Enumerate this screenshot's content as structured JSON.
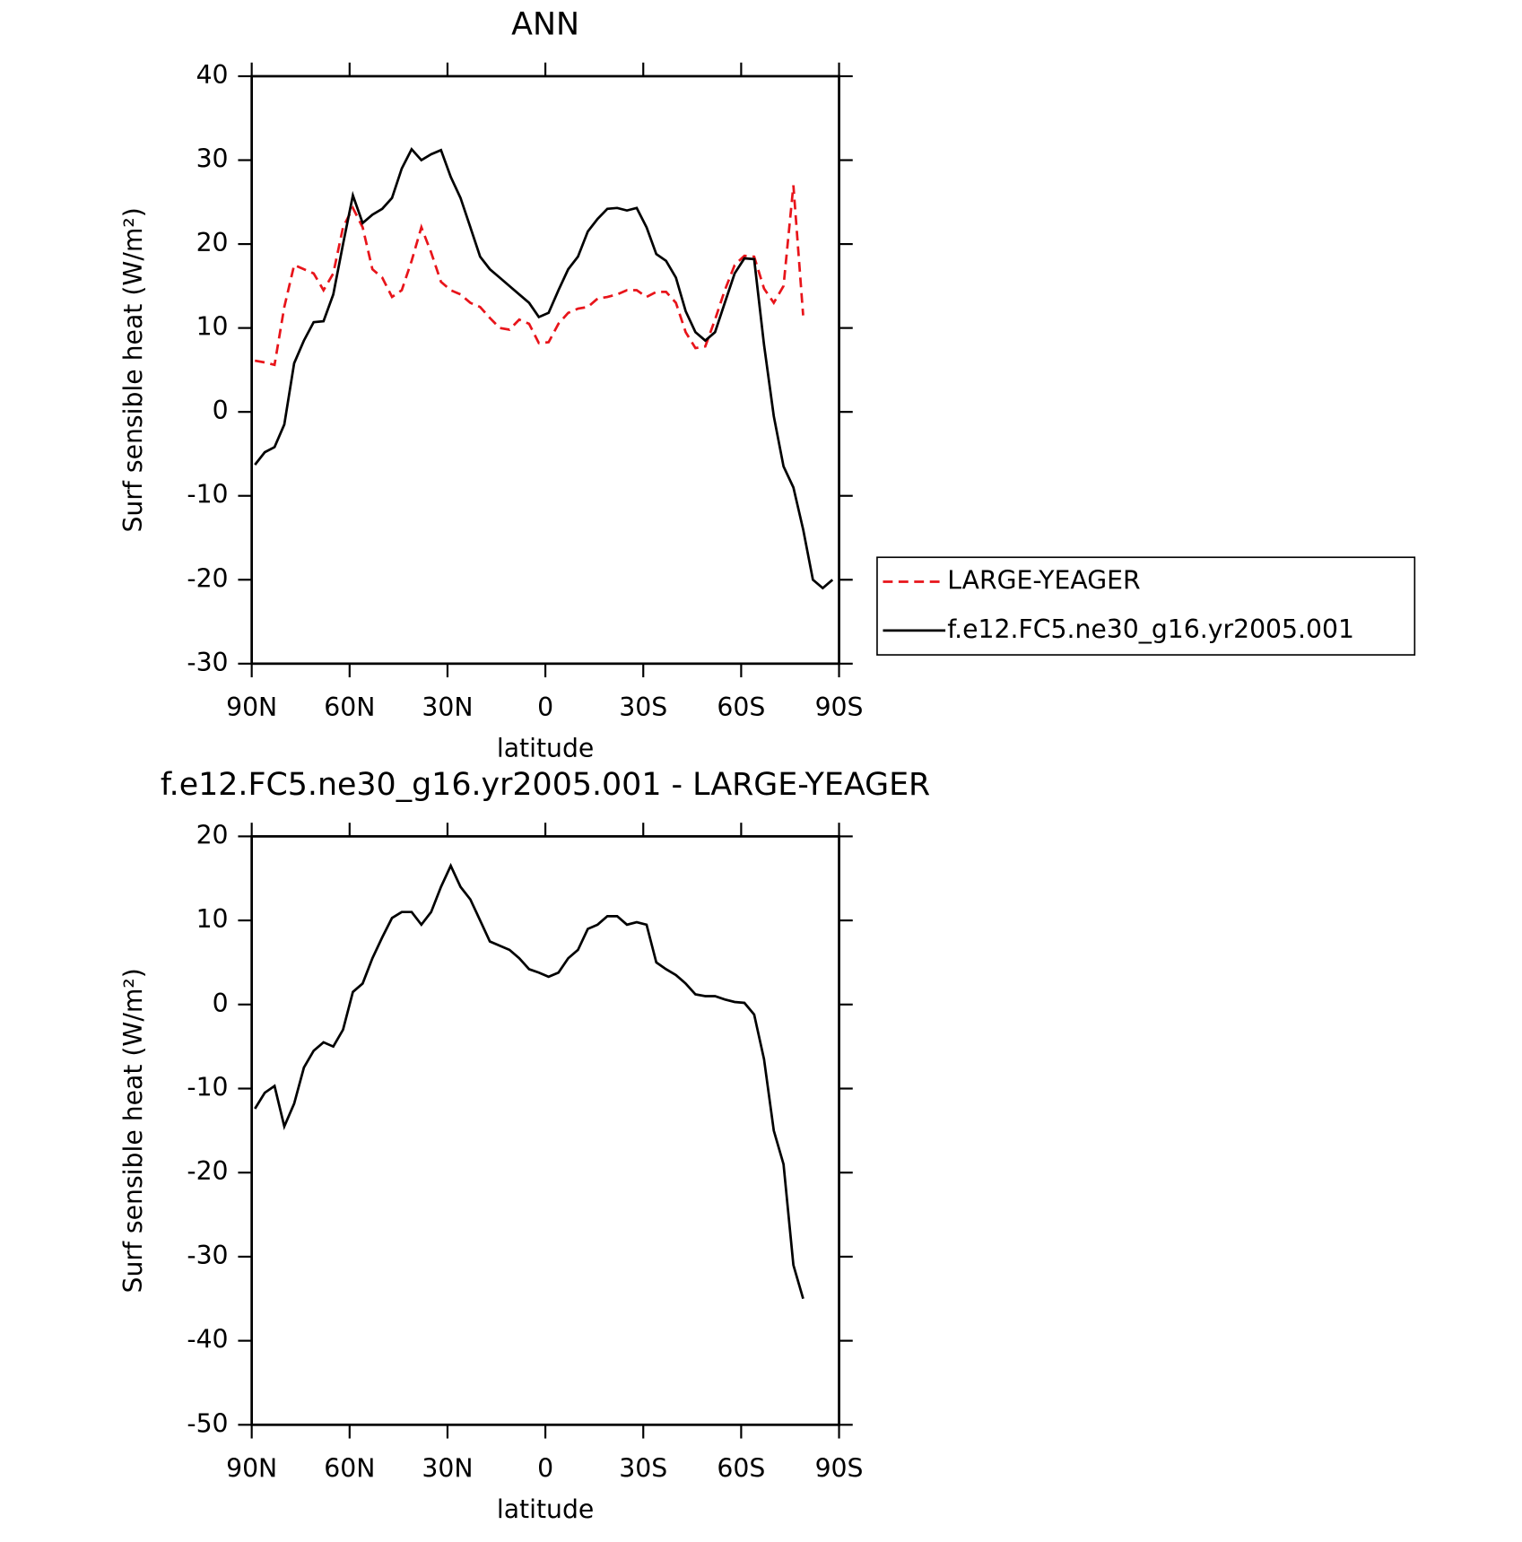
{
  "chart_data": [
    {
      "type": "line",
      "title": "ANN",
      "xlabel": "latitude",
      "ylabel": "Surf sensible heat (W/m²)",
      "x": [
        89,
        86,
        83,
        80,
        77,
        74,
        71,
        68,
        65,
        62,
        59,
        56,
        53,
        50,
        47,
        44,
        41,
        38,
        35,
        32,
        29,
        26,
        23,
        20,
        17,
        14,
        11,
        8,
        5,
        2,
        -1,
        -4,
        -7,
        -10,
        -13,
        -16,
        -19,
        -22,
        -25,
        -28,
        -31,
        -34,
        -37,
        -40,
        -43,
        -46,
        -49,
        -52,
        -55,
        -58,
        -61,
        -64,
        -67,
        -70,
        -73,
        -76,
        -79,
        -82,
        -85,
        -88
      ],
      "xlim": [
        90,
        -90
      ],
      "xticks": [
        {
          "value": 90,
          "label": "90N"
        },
        {
          "value": 60,
          "label": "60N"
        },
        {
          "value": 30,
          "label": "30N"
        },
        0,
        {
          "value": -30,
          "label": "30S"
        },
        {
          "value": -60,
          "label": "60S"
        },
        {
          "value": -90,
          "label": "90S"
        }
      ],
      "ylim": [
        -30,
        40
      ],
      "yticks": [
        -30,
        -20,
        -10,
        0,
        10,
        20,
        30,
        40
      ],
      "legend": "right",
      "series": [
        {
          "name": "LARGE-YEAGER",
          "color": "#e8141a",
          "dash": true,
          "values": [
            6.1,
            5.9,
            5.6,
            12.5,
            17.5,
            17,
            16.5,
            14.5,
            16.5,
            22,
            24.3,
            22,
            17,
            16,
            13.7,
            14.5,
            18,
            22,
            19,
            15.5,
            14.5,
            14,
            13,
            12.5,
            11.2,
            10,
            9.8,
            11,
            10.5,
            8.2,
            8.3,
            10.5,
            11.8,
            12.3,
            12.5,
            13.5,
            13.7,
            14,
            14.5,
            14.5,
            13.7,
            14.3,
            14.3,
            13,
            9.5,
            7.6,
            7.8,
            11,
            14.5,
            17.5,
            18.6,
            18.5,
            14.7,
            13,
            15,
            27,
            11.5,
            null,
            null,
            null
          ]
        },
        {
          "name": "f.e12.FC5.ne30_g16.yr2005.001",
          "color": "#000000",
          "dash": false,
          "values": [
            -6.3,
            -4.8,
            -4.2,
            -1.5,
            5.8,
            8.5,
            10.7,
            10.8,
            14,
            20,
            25.8,
            22.5,
            23.5,
            24.2,
            25.5,
            29,
            31.3,
            30,
            30.7,
            31.2,
            28,
            25.5,
            22,
            18.5,
            17,
            16,
            15,
            14,
            13,
            11.3,
            11.8,
            14.5,
            17,
            18.5,
            21.5,
            23,
            24.2,
            24.3,
            24,
            24.3,
            22,
            18.8,
            18,
            16,
            12,
            9.5,
            8.5,
            9.5,
            13,
            16.5,
            18.3,
            18.2,
            8,
            -0.5,
            -6.5,
            -9,
            -14,
            -20,
            -21,
            -20
          ]
        }
      ]
    },
    {
      "type": "line",
      "title": "f.e12.FC5.ne30_g16.yr2005.001 - LARGE-YEAGER",
      "xlabel": "latitude",
      "ylabel": "Surf sensible heat (W/m²)",
      "x": [
        89,
        86,
        83,
        80,
        77,
        74,
        71,
        68,
        65,
        62,
        59,
        56,
        53,
        50,
        47,
        44,
        41,
        38,
        35,
        32,
        29,
        26,
        23,
        20,
        17,
        14,
        11,
        8,
        5,
        2,
        -1,
        -4,
        -7,
        -10,
        -13,
        -16,
        -19,
        -22,
        -25,
        -28,
        -31,
        -34,
        -37,
        -40,
        -43,
        -46,
        -49,
        -52,
        -55,
        -58,
        -61,
        -64,
        -67,
        -70,
        -73,
        -76,
        -79,
        -82,
        -85,
        -88
      ],
      "xlim": [
        90,
        -90
      ],
      "xticks": [
        {
          "value": 90,
          "label": "90N"
        },
        {
          "value": 60,
          "label": "60N"
        },
        {
          "value": 30,
          "label": "30N"
        },
        0,
        {
          "value": -30,
          "label": "30S"
        },
        {
          "value": -60,
          "label": "60S"
        },
        {
          "value": -90,
          "label": "90S"
        }
      ],
      "ylim": [
        -50,
        20
      ],
      "yticks": [
        -50,
        -40,
        -30,
        -20,
        -10,
        0,
        10,
        20
      ],
      "series": [
        {
          "color": "#000000",
          "dash": false,
          "values": [
            -12.4,
            -10.5,
            -9.7,
            -14.5,
            -11.8,
            -7.5,
            -5.5,
            -4.5,
            -5,
            -3,
            1.5,
            2.5,
            5.5,
            8,
            10.3,
            11,
            11,
            9.5,
            11,
            14,
            16.5,
            14,
            12.5,
            10,
            7.5,
            7,
            6.5,
            5.5,
            4.2,
            3.8,
            3.3,
            3.8,
            5.5,
            6.5,
            9,
            9.5,
            10.5,
            10.5,
            9.5,
            9.8,
            9.5,
            5,
            4.2,
            3.5,
            2.5,
            1.2,
            1,
            1,
            0.6,
            0.3,
            0.2,
            -1.2,
            -6.5,
            -15,
            -19,
            -31,
            -35,
            null,
            null,
            null
          ]
        }
      ]
    }
  ]
}
